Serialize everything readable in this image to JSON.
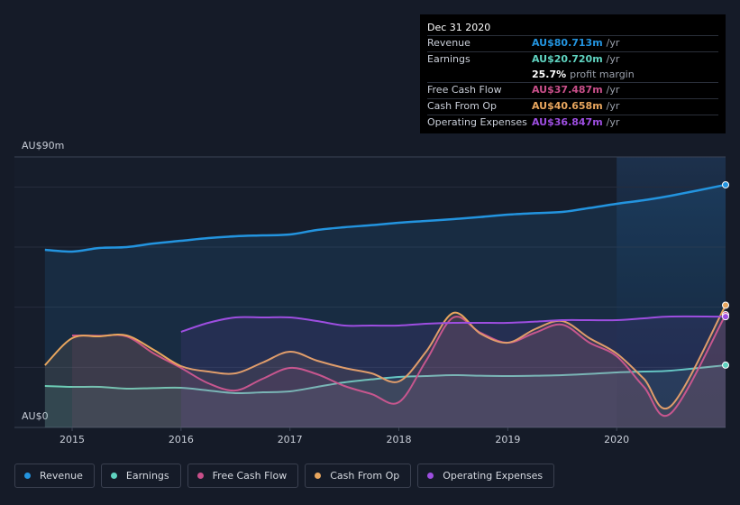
{
  "chart_data": {
    "type": "area",
    "x": [
      2014.75,
      2015,
      2015.25,
      2015.5,
      2015.75,
      2016,
      2016.25,
      2016.5,
      2016.75,
      2017,
      2017.25,
      2017.5,
      2017.75,
      2018,
      2018.25,
      2018.5,
      2018.75,
      2019,
      2019.25,
      2019.5,
      2019.75,
      2020,
      2020.25,
      2020.5,
      2021
    ],
    "xlim": [
      2014.47,
      2021
    ],
    "xticks": [
      2015,
      2016,
      2017,
      2018,
      2019,
      2020
    ],
    "ylim": [
      0,
      90
    ],
    "yticks": [
      {
        "value": 0,
        "label": "AU$0"
      },
      {
        "value": 20,
        "label": null
      },
      {
        "value": 40,
        "label": null
      },
      {
        "value": 60,
        "label": null
      },
      {
        "value": 80,
        "label": null
      },
      {
        "value": 90,
        "label": "AU$90m"
      }
    ],
    "grid": true,
    "series": [
      {
        "name": "Revenue",
        "color": "#2394df",
        "values": [
          59.1,
          58.5,
          59.7,
          60,
          61.2,
          62.1,
          63,
          63.6,
          63.9,
          64.2,
          65.7,
          66.6,
          67.3,
          68.1,
          68.7,
          69.3,
          70,
          70.8,
          71.3,
          71.7,
          73,
          74.4,
          75.6,
          77.1,
          80.713
        ]
      },
      {
        "name": "Earnings",
        "color": "#5fd3c0",
        "values": [
          13.8,
          13.5,
          13.5,
          12.9,
          13.1,
          13.2,
          12.3,
          11.4,
          11.7,
          12,
          13.5,
          15,
          16,
          16.8,
          17.1,
          17.4,
          17.2,
          17.1,
          17.2,
          17.4,
          17.8,
          18.3,
          18.6,
          18.9,
          20.72
        ]
      },
      {
        "name": "Free Cash Flow",
        "color": "#c94f8a",
        "values": [
          null,
          30.6,
          30.5,
          30.3,
          24.6,
          19.8,
          14.7,
          12.3,
          16.2,
          19.8,
          17.7,
          13.8,
          11.1,
          8.4,
          22.2,
          36.6,
          31.5,
          28.2,
          31.5,
          34.2,
          28.2,
          23.7,
          13.5,
          4.8,
          37.487
        ]
      },
      {
        "name": "Cash From Op",
        "color": "#e8a65e",
        "values": [
          20.7,
          29.7,
          30.3,
          30.6,
          25.8,
          20.4,
          18.6,
          18,
          21.6,
          25.2,
          22.2,
          19.8,
          18,
          15.3,
          25.2,
          38.1,
          31.2,
          28.2,
          32.7,
          35.4,
          29.7,
          24.6,
          16.2,
          7.2,
          40.658
        ]
      },
      {
        "name": "Operating Expenses",
        "color": "#9d4ee0",
        "values": [
          null,
          null,
          null,
          null,
          null,
          31.8,
          34.8,
          36.6,
          36.6,
          36.6,
          35.4,
          33.9,
          33.9,
          33.9,
          34.5,
          34.8,
          34.8,
          34.8,
          35.2,
          35.7,
          35.7,
          35.7,
          36.3,
          36.9,
          36.847
        ]
      }
    ]
  },
  "tooltip": {
    "date": "Dec 31 2020",
    "rows": [
      {
        "label": "Revenue",
        "value": "AU$80.713m",
        "unit": "/yr",
        "color": "#2394df"
      },
      {
        "label": "Earnings",
        "value": "AU$20.720m",
        "unit": "/yr",
        "color": "#5fd3c0"
      },
      {
        "label": null,
        "value": "25.7%",
        "unit": "profit margin",
        "color": "#ffffff"
      },
      {
        "label": "Free Cash Flow",
        "value": "AU$37.487m",
        "unit": "/yr",
        "color": "#c94f8a"
      },
      {
        "label": "Cash From Op",
        "value": "AU$40.658m",
        "unit": "/yr",
        "color": "#e8a65e"
      },
      {
        "label": "Operating Expenses",
        "value": "AU$36.847m",
        "unit": "/yr",
        "color": "#9d4ee0"
      }
    ]
  }
}
